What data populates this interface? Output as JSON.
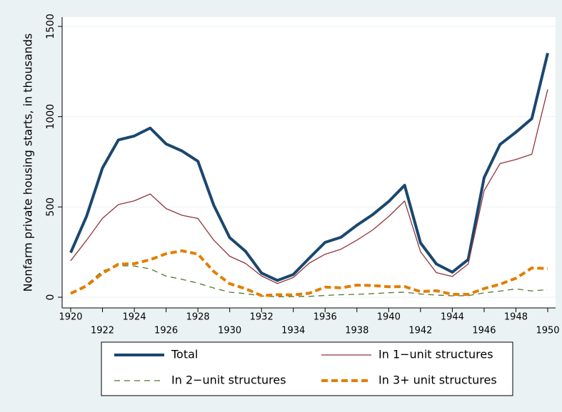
{
  "chart_data": {
    "type": "line",
    "y_label": "Nonfarm private housing starts, in thousands",
    "x": [
      1920,
      1921,
      1922,
      1923,
      1924,
      1925,
      1926,
      1927,
      1928,
      1929,
      1930,
      1931,
      1932,
      1933,
      1934,
      1935,
      1936,
      1937,
      1938,
      1939,
      1940,
      1941,
      1942,
      1943,
      1944,
      1945,
      1946,
      1947,
      1948,
      1949,
      1950
    ],
    "series": [
      {
        "name": "Total",
        "color": "#1a476f",
        "width": 4,
        "dash": "none",
        "values": [
          247,
          449,
          716,
          871,
          893,
          937,
          849,
          810,
          753,
          509,
          330,
          254,
          134,
          93,
          126,
          216,
          304,
          332,
          399,
          458,
          530,
          620,
          301,
          184,
          139,
          209,
          662,
          846,
          914,
          989,
          1352
        ]
      },
      {
        "name": "In 1−unit structures",
        "color": "#90353b",
        "width": 1.3,
        "dash": "none",
        "values": [
          202,
          316,
          437,
          513,
          534,
          572,
          491,
          454,
          436,
          316,
          227,
          187,
          118,
          76,
          109,
          189,
          238,
          266,
          316,
          373,
          447,
          533,
          252,
          136,
          115,
          184,
          590,
          740,
          763,
          792,
          1151
        ]
      },
      {
        "name": "In 2−unit structures",
        "color": "#55752f",
        "width": 1.3,
        "dash": "8,6",
        "values": [
          24,
          70,
          146,
          175,
          173,
          157,
          117,
          99,
          78,
          51,
          28,
          20,
          7,
          3,
          4,
          5,
          10,
          14,
          16,
          20,
          25,
          28,
          18,
          12,
          8,
          9,
          24,
          34,
          46,
          35,
          42
        ]
      },
      {
        "name": "In 3+ unit structures",
        "color": "#e37e00",
        "width": 4,
        "dash": "9,5",
        "values": [
          21,
          63,
          133,
          183,
          186,
          208,
          241,
          257,
          239,
          142,
          75,
          47,
          9,
          14,
          13,
          22,
          56,
          52,
          67,
          65,
          58,
          59,
          31,
          36,
          16,
          16,
          48,
          72,
          105,
          162,
          159
        ]
      }
    ],
    "xlim": [
      1920,
      1950
    ],
    "xticks": [
      1920,
      1922,
      1924,
      1926,
      1928,
      1930,
      1932,
      1934,
      1936,
      1938,
      1940,
      1942,
      1944,
      1946,
      1948,
      1950
    ],
    "ylim": [
      0,
      1500
    ],
    "yticks": [
      0,
      500,
      1000,
      1500
    ],
    "grid": true
  }
}
